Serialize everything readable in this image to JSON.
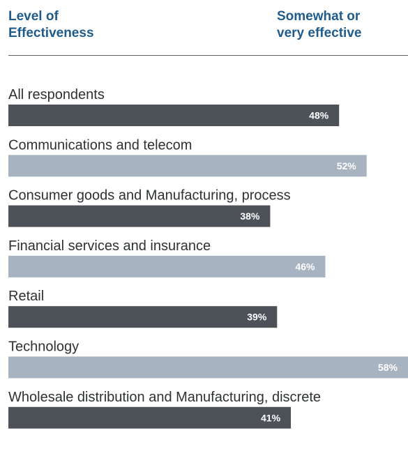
{
  "header": {
    "left_title": "Level of\nEffectiveness",
    "right_title": "Somewhat or\nvery effective",
    "title_color": "#1f5c8c"
  },
  "colors": {
    "dark_bar": "#4c5257",
    "light_bar": "#a8b3c1",
    "divider": "#5a5f63"
  },
  "chart_data": {
    "type": "bar",
    "orientation": "horizontal",
    "categories": [
      "All respondents",
      "Communications and telecom",
      "Consumer goods and Manufacturing, process",
      "Financial services and insurance",
      "Retail",
      "Technology",
      "Wholesale distribution and Manufacturing, discrete"
    ],
    "values": [
      48,
      52,
      38,
      46,
      39,
      58,
      41
    ],
    "value_labels": [
      "48%",
      "52%",
      "38%",
      "46%",
      "39%",
      "58%",
      "41%"
    ],
    "bar_colors": [
      "#4c5257",
      "#a8b3c1",
      "#4c5257",
      "#a8b3c1",
      "#4c5257",
      "#a8b3c1",
      "#4c5257"
    ],
    "xlim": [
      0,
      58
    ],
    "grid": false,
    "legend": "none"
  }
}
